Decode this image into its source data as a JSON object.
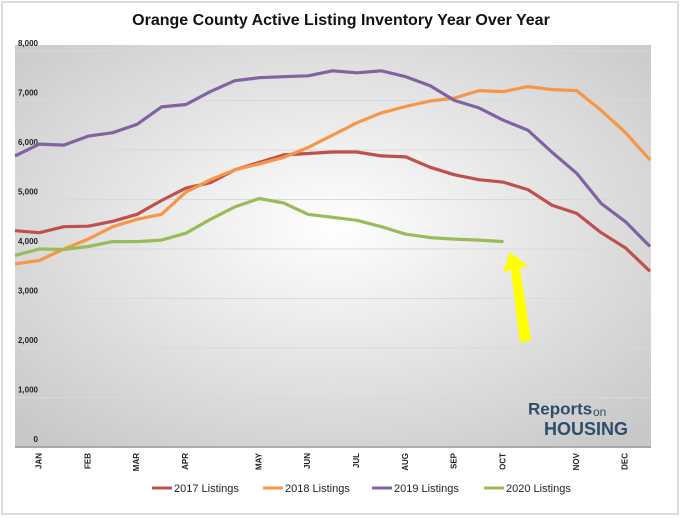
{
  "chart_data": {
    "type": "line",
    "title": "Orange County Active Listing Inventory Year Over Year",
    "categories": [
      null,
      "JAN",
      null,
      "FEB",
      null,
      "MAR",
      null,
      "APR",
      null,
      null,
      "MAY",
      null,
      "JUN",
      null,
      "JUL",
      null,
      "AUG",
      null,
      "SEP",
      null,
      "OCT",
      null,
      null,
      "NOV",
      null,
      "DEC",
      null
    ],
    "series": [
      {
        "name": "2017 Listings",
        "color": "#c0504d",
        "values": [
          4370,
          4330,
          4450,
          4460,
          4560,
          4700,
          4980,
          5230,
          5340,
          5600,
          5750,
          5900,
          5930,
          5960,
          5960,
          5880,
          5860,
          5650,
          5500,
          5400,
          5350,
          5200,
          4880,
          4720,
          4330,
          4020,
          3550
        ]
      },
      {
        "name": "2018 Listings",
        "color": "#f79646",
        "values": [
          3700,
          3770,
          4000,
          4200,
          4450,
          4600,
          4700,
          5150,
          5400,
          5600,
          5720,
          5850,
          6050,
          6300,
          6550,
          6750,
          6880,
          6990,
          7050,
          7200,
          7180,
          7280,
          7220,
          7200,
          6800,
          6350,
          5800
        ]
      },
      {
        "name": "2019 Listings",
        "color": "#8064a2",
        "values": [
          5880,
          6120,
          6100,
          6280,
          6350,
          6520,
          6870,
          6920,
          7180,
          7400,
          7460,
          7480,
          7500,
          7600,
          7560,
          7600,
          7480,
          7300,
          7000,
          6850,
          6600,
          6400,
          5950,
          5530,
          4920,
          4550,
          4050
        ]
      },
      {
        "name": "2020 Listings",
        "color": "#9bbb59",
        "values": [
          3870,
          4000,
          3990,
          4050,
          4150,
          4150,
          4180,
          4320,
          4600,
          4850,
          5020,
          4930,
          4700,
          4640,
          4580,
          4450,
          4300,
          4230,
          4200,
          4180,
          4150,
          null,
          null,
          null,
          null,
          null,
          null
        ]
      }
    ],
    "ylim": [
      0,
      8000
    ],
    "yticks": [
      0,
      {
        "value": 1000,
        "label": "1,000"
      },
      {
        "value": 2000,
        "label": "2,000"
      },
      {
        "value": 3000,
        "label": "3,000"
      },
      {
        "value": 4000,
        "label": "4,000"
      },
      {
        "value": 5000,
        "label": "5,000"
      },
      {
        "value": 6000,
        "label": "6,000"
      },
      {
        "value": 7000,
        "label": "7,000"
      },
      {
        "value": 8000,
        "label": "8,000"
      }
    ],
    "grid": true,
    "legend": "bottom",
    "logo": {
      "line1": "Reports",
      "line1b": "on",
      "line2": "HOUSING"
    }
  }
}
